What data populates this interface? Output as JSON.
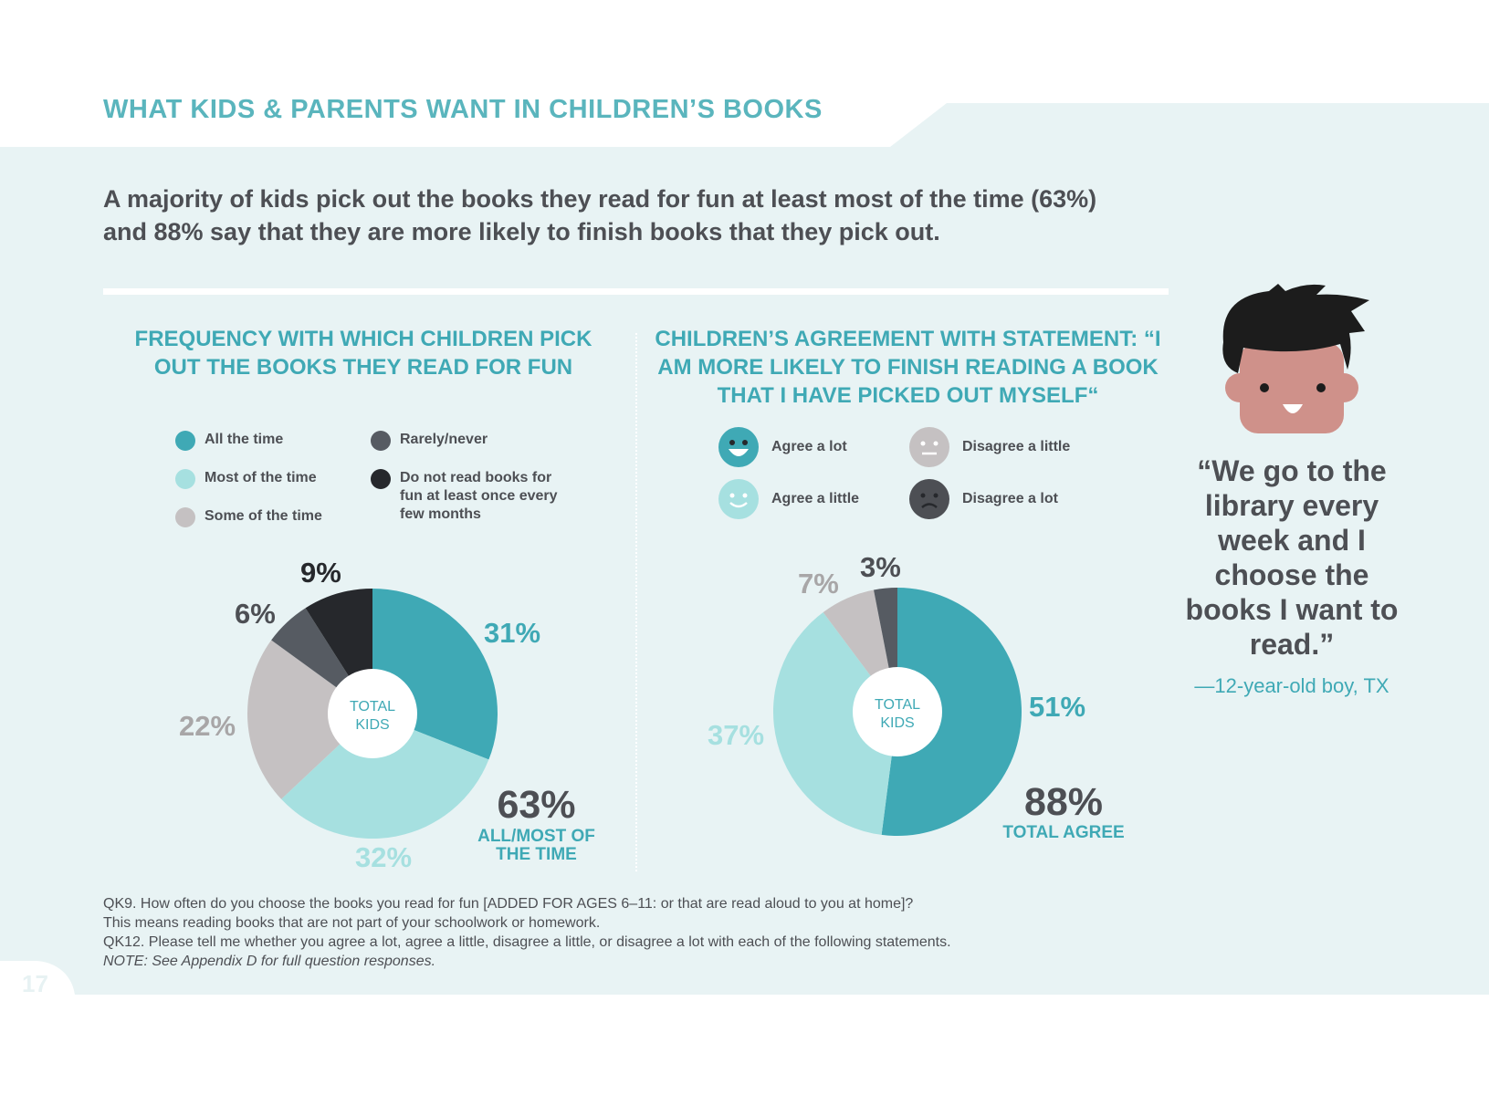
{
  "header": {
    "section_title": "WHAT KIDS & PARENTS WANT IN CHILDREN’S BOOKS",
    "subtitle_line1": "A majority of kids pick out the books they read for fun at least most of the time (63%)",
    "subtitle_line2": "and 88% say that they are more likely to finish books that they pick out."
  },
  "colors": {
    "background_panel": "#e8f3f4",
    "accent": "#3fa9b5",
    "text_dark": "#4d4f54"
  },
  "chart_data": [
    {
      "type": "pie",
      "title": "FREQUENCY WITH WHICH CHILDREN PICK OUT THE BOOKS THEY READ FOR FUN",
      "center_label": "TOTAL\nKIDS",
      "categories": [
        "All the time",
        "Most of the time",
        "Some of the time",
        "Rarely/never",
        "Do not read books for fun at least once every few months"
      ],
      "values": [
        31,
        32,
        22,
        6,
        9
      ],
      "value_labels": [
        "31%",
        "32%",
        "22%",
        "6%",
        "9%"
      ],
      "colors": [
        "#3fa9b5",
        "#a6e0e0",
        "#c5c1c2",
        "#565b62",
        "#26282c"
      ],
      "label_colors": [
        "#3fa9b5",
        "#a6e0e0",
        "#a8a6a7",
        "#4d4f54",
        "#26282c"
      ],
      "legend_placement": "top",
      "summary": {
        "value": "63%",
        "label": "ALL/MOST OF\nTHE TIME"
      }
    },
    {
      "type": "pie",
      "title": "CHILDREN’S AGREEMENT WITH STATEMENT: “I AM MORE LIKELY TO FINISH READING A BOOK THAT I HAVE PICKED OUT MYSELF“",
      "center_label": "TOTAL\nKIDS",
      "categories": [
        "Agree a lot",
        "Agree a little",
        "Disagree a little",
        "Disagree a lot"
      ],
      "values": [
        51,
        37,
        7,
        3
      ],
      "value_labels": [
        "51%",
        "37%",
        "7%",
        "3%"
      ],
      "colors": [
        "#3fa9b5",
        "#a6e0e0",
        "#c5c1c2",
        "#565b62"
      ],
      "label_colors": [
        "#3fa9b5",
        "#a6e0e0",
        "#a8a6a7",
        "#4d4f54"
      ],
      "legend_icons": [
        "big-smile-face-icon",
        "smile-face-icon",
        "neutral-face-icon",
        "frown-face-icon"
      ],
      "legend_placement": "top",
      "summary": {
        "value": "88%",
        "label": "TOTAL AGREE"
      }
    }
  ],
  "quote": {
    "text": "“We go to the library every week and I choose the books I want to read.”",
    "attribution": "—12-year-old boy, TX"
  },
  "footnotes": {
    "line1": "QK9. How often do you choose the books you read for fun [ADDED FOR AGES 6–11: or that are read aloud to you at home]?",
    "line2": "This means reading books that are not part of your schoolwork or homework.",
    "line3": "QK12. Please tell me whether you agree a lot, agree a little, disagree a little, or disagree a lot with each of the following statements.",
    "line4": "NOTE: See Appendix D for full question responses."
  },
  "page_number": "17"
}
